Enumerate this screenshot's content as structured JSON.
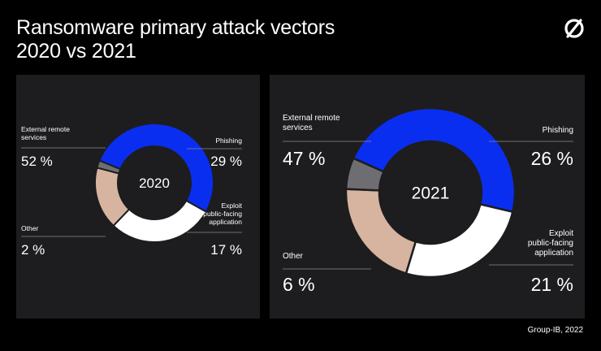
{
  "header": {
    "title_line1": "Ransomware primary attack vectors",
    "title_line2": "2020 vs 2021",
    "logo_icon": "group-ib-logo-icon"
  },
  "credit": "Group-IB, 2022",
  "colors": {
    "background": "#000000",
    "panel": "#1d1d1f",
    "external_remote_services": "#0a2ef0",
    "phishing": "#ffffff",
    "exploit": "#d6b4a0",
    "other": "#6e6e72"
  },
  "chart_data": [
    {
      "type": "pie",
      "center_label": "2020",
      "slices": [
        {
          "label_lines": [
            "External remote",
            "services"
          ],
          "value_text": "52 %",
          "value": 52,
          "color": "#0a2ef0"
        },
        {
          "label_lines": [
            "Phishing"
          ],
          "value_text": "29 %",
          "value": 29,
          "color": "#ffffff"
        },
        {
          "label_lines": [
            "Exploit",
            "public-facing",
            "application"
          ],
          "value_text": "17 %",
          "value": 17,
          "color": "#d6b4a0"
        },
        {
          "label_lines": [
            "Other"
          ],
          "value_text": "2 %",
          "value": 2,
          "color": "#6e6e72"
        }
      ]
    },
    {
      "type": "pie",
      "center_label": "2021",
      "slices": [
        {
          "label_lines": [
            "External remote",
            "services"
          ],
          "value_text": "47 %",
          "value": 47,
          "color": "#0a2ef0"
        },
        {
          "label_lines": [
            "Phishing"
          ],
          "value_text": "26 %",
          "value": 26,
          "color": "#ffffff"
        },
        {
          "label_lines": [
            "Exploit",
            "public-facing",
            "application"
          ],
          "value_text": "21 %",
          "value": 21,
          "color": "#d6b4a0"
        },
        {
          "label_lines": [
            "Other"
          ],
          "value_text": "6 %",
          "value": 6,
          "color": "#6e6e72"
        }
      ]
    }
  ]
}
